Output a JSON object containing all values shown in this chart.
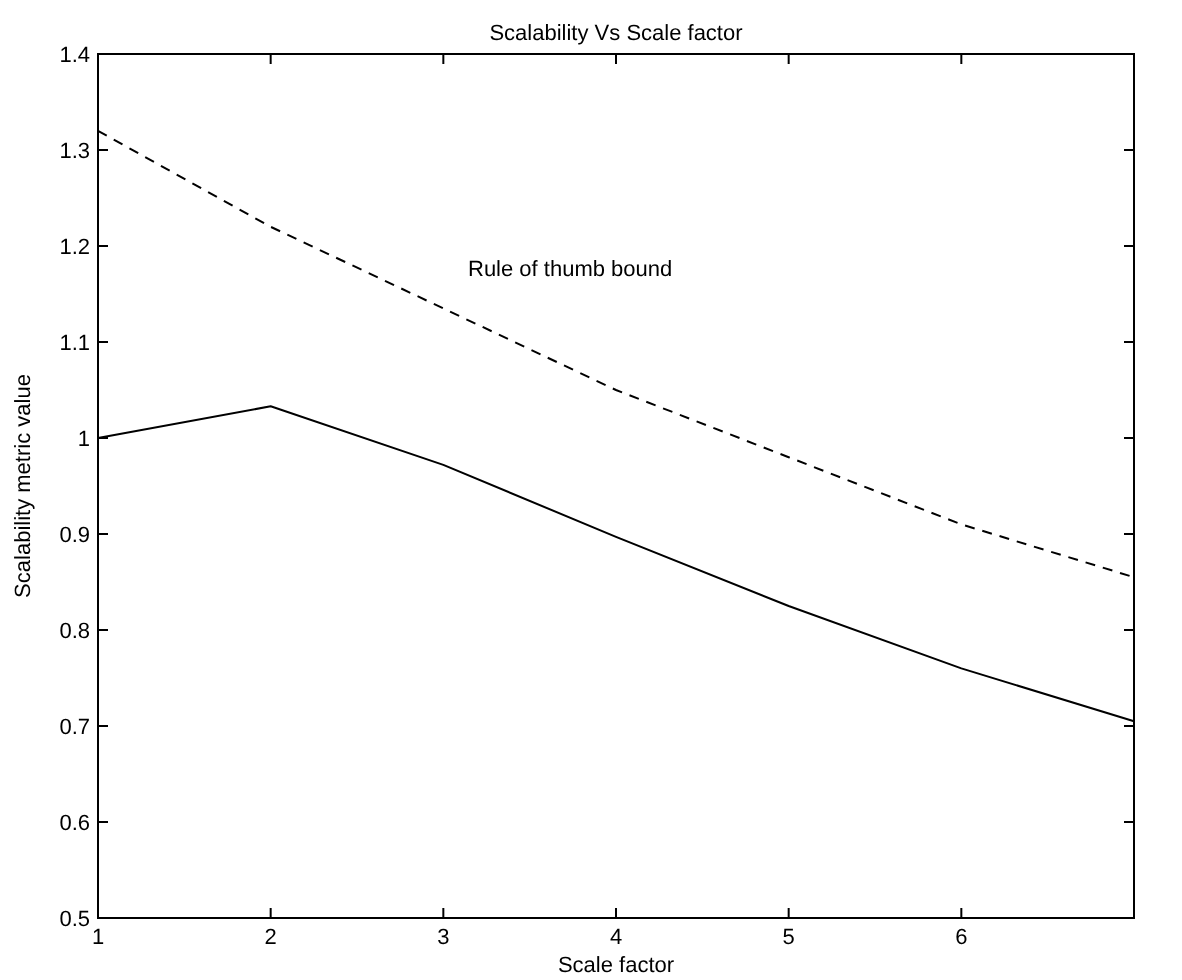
{
  "chart_data": {
    "type": "line",
    "title": "Scalability Vs Scale factor",
    "xlabel": "Scale factor",
    "ylabel": "Scalability metric value",
    "x": [
      1,
      2,
      3,
      4,
      5,
      6,
      7
    ],
    "series": [
      {
        "color": "#000000",
        "line_style": "solid",
        "values": [
          1.0,
          1.033,
          0.972,
          0.897,
          0.825,
          0.76,
          0.705
        ]
      },
      {
        "color": "#000000",
        "line_style": "dashed",
        "values": [
          1.32,
          1.22,
          1.135,
          1.05,
          0.98,
          0.91,
          0.855
        ]
      }
    ],
    "annotations": [
      "Rule of thumb bound"
    ],
    "xlim": [
      1,
      7
    ],
    "xticks": [
      1,
      2,
      3,
      4,
      5,
      6
    ],
    "ylim": [
      0.5,
      1.4
    ],
    "yticks": [
      0.5,
      0.6,
      0.7,
      0.8,
      0.9,
      1,
      1.1,
      1.2,
      1.3,
      1.4
    ],
    "grid": false,
    "marker": "none"
  }
}
